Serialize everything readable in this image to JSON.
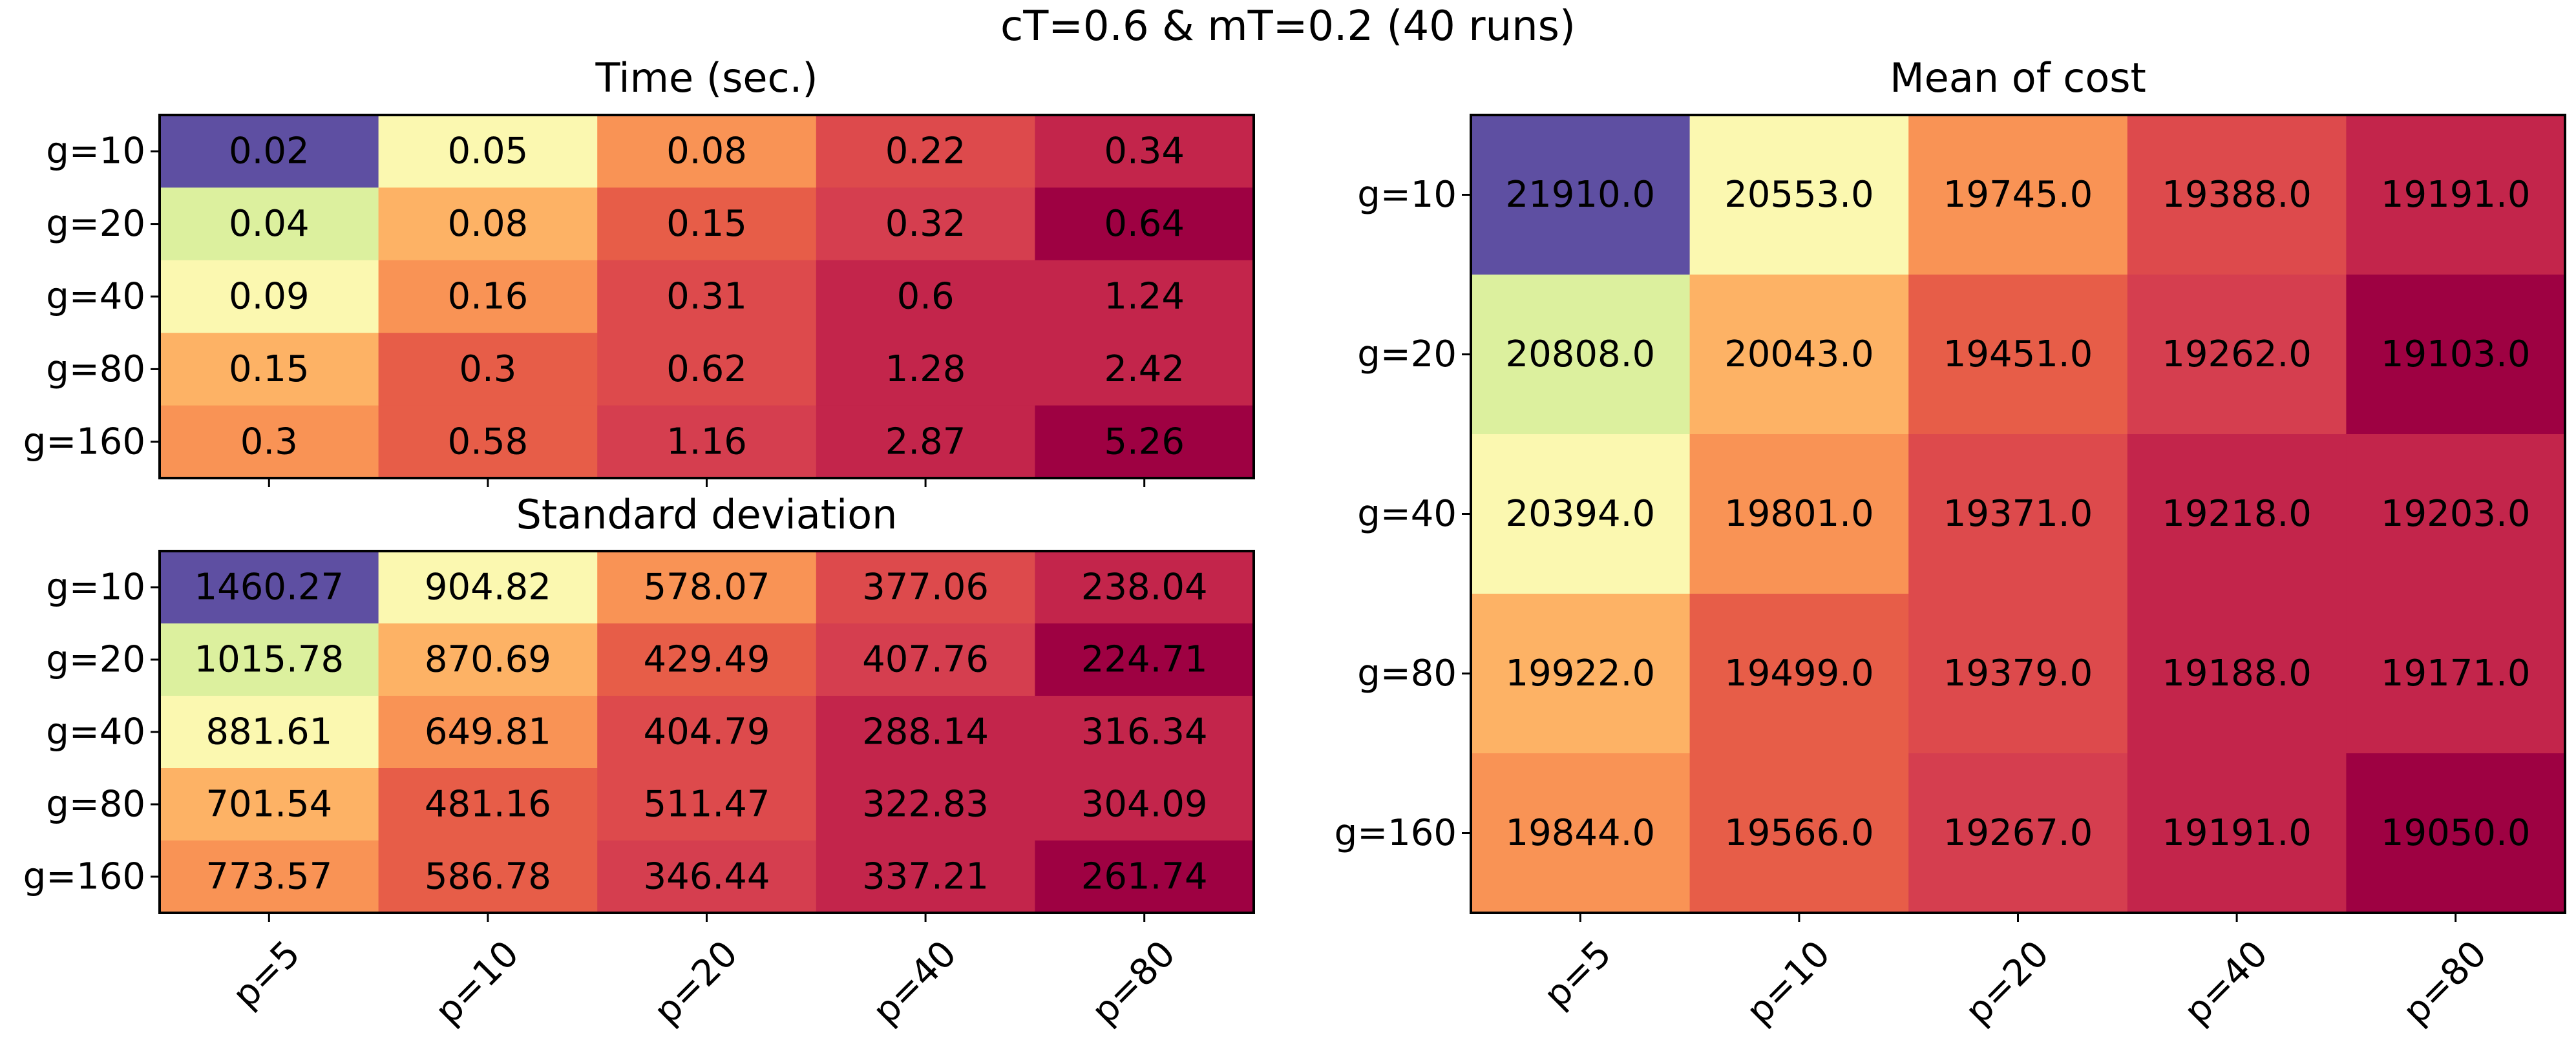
{
  "suptitle": "cT=0.6 & mT=0.2 (40 runs)",
  "chart_data": [
    {
      "type": "heatmap",
      "title": "Time (sec.)",
      "x_tick_labels": [
        "p=5",
        "p=10",
        "p=20",
        "p=40",
        "p=80"
      ],
      "y_tick_labels": [
        "g=10",
        "g=20",
        "g=40",
        "g=80",
        "g=160"
      ],
      "values": [
        [
          "0.02",
          "0.05",
          "0.08",
          "0.22",
          "0.34"
        ],
        [
          "0.04",
          "0.08",
          "0.15",
          "0.32",
          "0.64"
        ],
        [
          "0.09",
          "0.16",
          "0.31",
          "0.6",
          "1.24"
        ],
        [
          "0.15",
          "0.3",
          "0.62",
          "1.28",
          "2.42"
        ],
        [
          "0.3",
          "0.58",
          "1.16",
          "2.87",
          "5.26"
        ]
      ],
      "colormap": "Spectral_r (rank-based)",
      "x_tick_labels_shown": false
    },
    {
      "type": "heatmap",
      "title": "Standard deviation",
      "x_tick_labels": [
        "p=5",
        "p=10",
        "p=20",
        "p=40",
        "p=80"
      ],
      "y_tick_labels": [
        "g=10",
        "g=20",
        "g=40",
        "g=80",
        "g=160"
      ],
      "values": [
        [
          "1460.27",
          "904.82",
          "578.07",
          "377.06",
          "238.04"
        ],
        [
          "1015.78",
          "870.69",
          "429.49",
          "407.76",
          "224.71"
        ],
        [
          "881.61",
          "649.81",
          "404.79",
          "288.14",
          "316.34"
        ],
        [
          "701.54",
          "481.16",
          "511.47",
          "322.83",
          "304.09"
        ],
        [
          "773.57",
          "586.78",
          "346.44",
          "337.21",
          "261.74"
        ]
      ],
      "x_tick_labels_shown": true
    },
    {
      "type": "heatmap",
      "title": "Mean of cost",
      "x_tick_labels": [
        "p=5",
        "p=10",
        "p=20",
        "p=40",
        "p=80"
      ],
      "y_tick_labels": [
        "g=10",
        "g=20",
        "g=40",
        "g=80",
        "g=160"
      ],
      "values": [
        [
          "21910.0",
          "20553.0",
          "19745.0",
          "19388.0",
          "19191.0"
        ],
        [
          "20808.0",
          "20043.0",
          "19451.0",
          "19262.0",
          "19103.0"
        ],
        [
          "20394.0",
          "19801.0",
          "19371.0",
          "19218.0",
          "19203.0"
        ],
        [
          "19922.0",
          "19499.0",
          "19379.0",
          "19188.0",
          "19171.0"
        ],
        [
          "19844.0",
          "19566.0",
          "19267.0",
          "19191.0",
          "19050.0"
        ]
      ],
      "x_tick_labels_shown": true
    }
  ],
  "cell_color_ranks": [
    [
      0,
      2,
      4,
      6,
      8
    ],
    [
      1,
      3,
      5,
      7,
      9
    ],
    [
      2,
      4,
      6,
      8,
      8
    ],
    [
      3,
      5,
      6,
      8,
      8
    ],
    [
      4,
      5,
      7,
      8,
      9
    ]
  ],
  "palette": [
    "#5e4fa2",
    "#dcf09e",
    "#fbf8b0",
    "#fdb265",
    "#f99355",
    "#e75d48",
    "#dd4a4c",
    "#d53e4f",
    "#c3254b",
    "#9e0142"
  ]
}
